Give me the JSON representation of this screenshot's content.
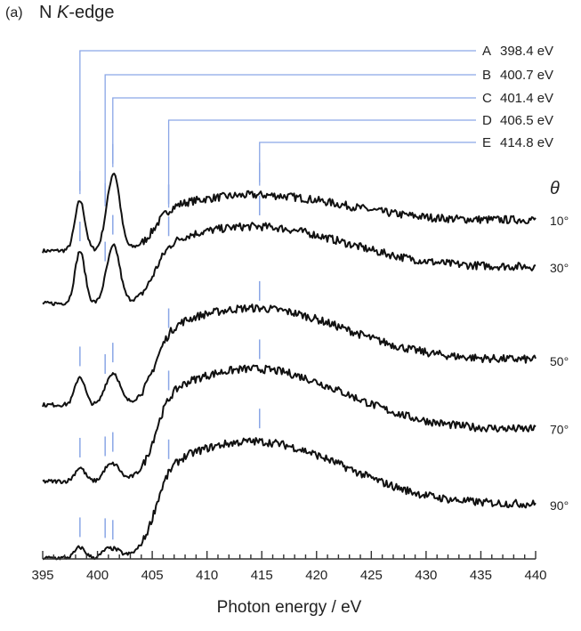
{
  "chart_data": {
    "type": "line",
    "panel_label": "(a)",
    "title": {
      "prefix": "N ",
      "italic": "K",
      "suffix": "-edge"
    },
    "xlabel": "Photon energy / eV",
    "xlim": [
      395,
      440
    ],
    "xticks": [
      "395",
      "400",
      "405",
      "410",
      "415",
      "420",
      "425",
      "430",
      "435",
      "440"
    ],
    "theta_label": "θ",
    "peaks": [
      {
        "label": "A",
        "energy_text": "398.4 eV",
        "energy": 398.4
      },
      {
        "label": "B",
        "energy_text": "400.7 eV",
        "energy": 400.7
      },
      {
        "label": "C",
        "energy_text": "401.4 eV",
        "energy": 401.4
      },
      {
        "label": "D",
        "energy_text": "406.5 eV",
        "energy": 406.5
      },
      {
        "label": "E",
        "energy_text": "414.8 eV",
        "energy": 414.8
      }
    ],
    "series": [
      {
        "name": "10°",
        "A": 0.62,
        "B": 0.1,
        "C": 0.95,
        "D": 0.12,
        "E": 0.0,
        "edge": 0.66,
        "tail": 0.4
      },
      {
        "name": "30°",
        "A": 0.65,
        "B": 0.1,
        "C": 0.7,
        "D": 0.14,
        "E": 0.0,
        "edge": 0.95,
        "tail": 0.45
      },
      {
        "name": "50°",
        "A": 0.35,
        "B": 0.1,
        "C": 0.38,
        "D": 0.16,
        "E": 0.0,
        "edge": 1.2,
        "tail": 0.52
      },
      {
        "name": "70°",
        "A": 0.17,
        "B": 0.08,
        "C": 0.2,
        "D": 0.18,
        "E": 0.0,
        "edge": 1.4,
        "tail": 0.6
      },
      {
        "name": "90°",
        "A": 0.13,
        "B": 0.06,
        "C": 0.1,
        "D": 0.2,
        "E": 0.0,
        "edge": 1.45,
        "tail": 0.63
      }
    ],
    "colors": {
      "trace": "#111111",
      "guide": "#8aa6e6",
      "axis": "#333333"
    }
  }
}
